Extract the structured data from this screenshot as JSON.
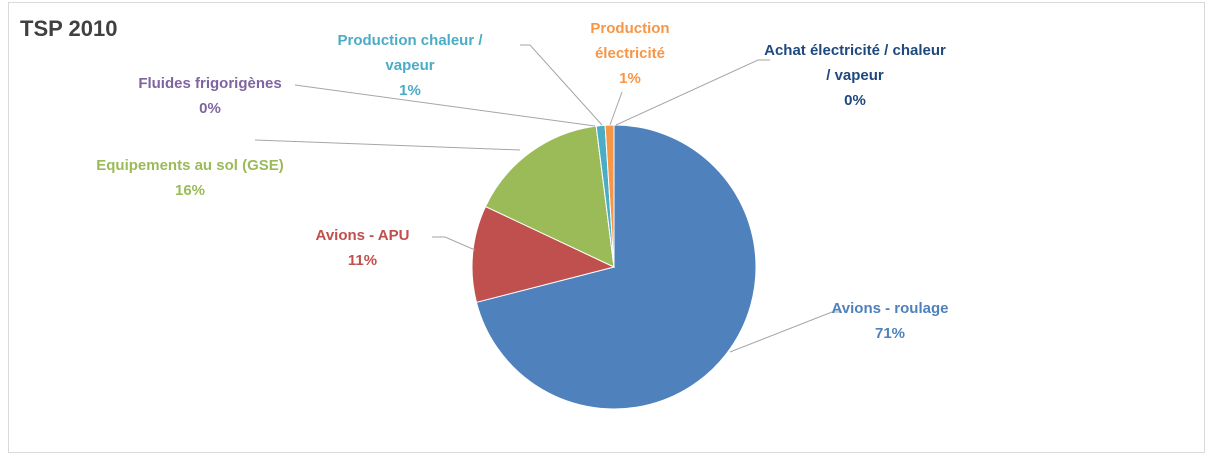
{
  "chart_data": {
    "type": "pie",
    "title": "TSP 2010",
    "categories": [
      "Avions - roulage",
      "Avions - APU",
      "Equipements au sol (GSE)",
      "Fluides frigorigènes",
      "Production chaleur / vapeur",
      "Production électricité",
      "Achat électricité / chaleur / vapeur"
    ],
    "values": [
      71,
      11,
      16,
      0,
      1,
      1,
      0
    ],
    "value_labels": [
      "71%",
      "11%",
      "16%",
      "0%",
      "1%",
      "1%",
      "0%"
    ],
    "colors": [
      "#4f81bd",
      "#c0504d",
      "#9bbb59",
      "#8064a2",
      "#4bacc6",
      "#f79646",
      "#1f497d"
    ]
  }
}
